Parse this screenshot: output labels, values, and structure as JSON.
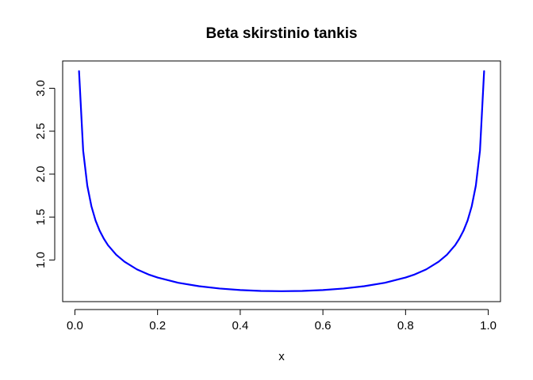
{
  "chart_data": {
    "type": "line",
    "title": "Beta skirstinio tankis",
    "xlabel": "x",
    "ylabel": "",
    "xlim": [
      -0.0296,
      1.0296
    ],
    "ylim": [
      0.5153,
      3.3179
    ],
    "x_ticks": [
      0.0,
      0.2,
      0.4,
      0.6,
      0.8,
      1.0
    ],
    "x_tick_labels": [
      "0.0",
      "0.2",
      "0.4",
      "0.6",
      "0.8",
      "1.0"
    ],
    "y_ticks": [
      1.0,
      1.5,
      2.0,
      2.5,
      3.0
    ],
    "y_tick_labels": [
      "1.0",
      "1.5",
      "2.0",
      "2.5",
      "3.0"
    ],
    "grid": false,
    "legend": "none",
    "series": [
      {
        "color": "#0000ff",
        "x": [
          0.01,
          0.02,
          0.03,
          0.04,
          0.05,
          0.06,
          0.07,
          0.08,
          0.1,
          0.12,
          0.15,
          0.18,
          0.2,
          0.25,
          0.3,
          0.35,
          0.4,
          0.45,
          0.5,
          0.55,
          0.6,
          0.65,
          0.7,
          0.75,
          0.8,
          0.82,
          0.85,
          0.88,
          0.9,
          0.92,
          0.93,
          0.94,
          0.95,
          0.96,
          0.97,
          0.98,
          0.99
        ],
        "y": [
          3.199,
          2.274,
          1.866,
          1.625,
          1.46,
          1.34,
          1.248,
          1.173,
          1.061,
          0.98,
          0.891,
          0.828,
          0.796,
          0.735,
          0.695,
          0.668,
          0.65,
          0.64,
          0.637,
          0.64,
          0.65,
          0.668,
          0.695,
          0.735,
          0.796,
          0.828,
          0.891,
          0.98,
          1.061,
          1.173,
          1.248,
          1.34,
          1.46,
          1.625,
          1.866,
          2.274,
          3.199
        ]
      }
    ]
  }
}
